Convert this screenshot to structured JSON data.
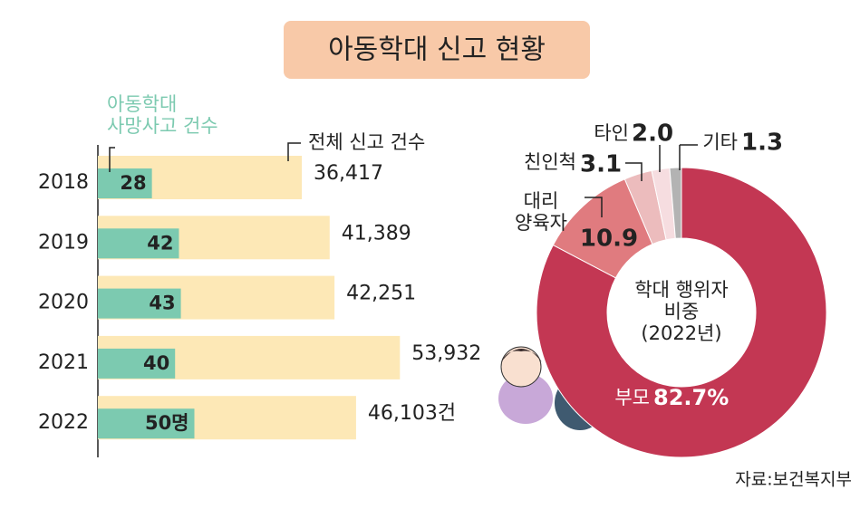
{
  "title": "아동학대 신고 현황",
  "source": "자료:보건복지부",
  "chart_data": [
    {
      "type": "hbar",
      "categories": [
        "2018",
        "2019",
        "2020",
        "2021",
        "2022"
      ],
      "series": [
        {
          "name": "아동학대\n사망사고 건수",
          "color": "#7ccab0",
          "values": [
            28,
            42,
            43,
            40,
            50
          ],
          "value_labels": [
            "28",
            "42",
            "43",
            "40",
            "50명"
          ]
        },
        {
          "name": "전체 신고 건수",
          "color": "#fde8b6",
          "values": [
            36417,
            41389,
            42251,
            53932,
            46103
          ],
          "value_labels": [
            "36,417",
            "41,389",
            "42,251",
            "53,932",
            "46,103건"
          ]
        }
      ]
    },
    {
      "type": "donut",
      "center_label": "학대 행위자\n비중\n(2022년)",
      "categories": [
        "부모",
        "대리\n양육자",
        "친인척",
        "타인",
        "기타"
      ],
      "values": [
        82.7,
        10.9,
        3.1,
        2.0,
        1.3
      ],
      "value_labels": [
        "82.7%",
        "10.9",
        "3.1",
        "2.0",
        "1.3"
      ],
      "colors": [
        "#c33753",
        "#e07b7f",
        "#ecbcbd",
        "#f6dde0",
        "#b3b3b3"
      ]
    }
  ]
}
